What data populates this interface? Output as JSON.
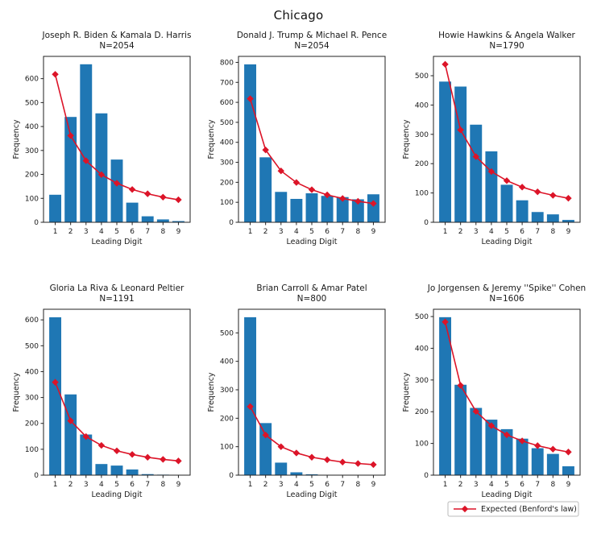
{
  "figure": {
    "title": "Chicago",
    "background": "#ffffff"
  },
  "style": {
    "bar_color": "#1f77b4",
    "line_color": "#dc1428",
    "axis_color": "#222222",
    "text_color": "#1a1a1a",
    "legend_border": "#bbbbbb"
  },
  "legend": {
    "label": "Expected (Benford's law)",
    "position": "below bottom-right subplot"
  },
  "shared": {
    "xlabel": "Leading Digit",
    "ylabel": "Frequency",
    "categories": [
      1,
      2,
      3,
      4,
      5,
      6,
      7,
      8,
      9
    ]
  },
  "chart_data": [
    {
      "id": "biden-harris",
      "type": "bar",
      "title": "Joseph R. Biden & Kamala D. Harris",
      "subtitle": "N=2054",
      "n": 2054,
      "xlabel": "Leading Digit",
      "ylabel": "Frequency",
      "categories": [
        1,
        2,
        3,
        4,
        5,
        6,
        7,
        8,
        9
      ],
      "series": [
        {
          "name": "Observed frequency",
          "type": "bar",
          "values": [
            115,
            440,
            660,
            455,
            262,
            82,
            25,
            12,
            5
          ]
        },
        {
          "name": "Expected (Benford's law)",
          "type": "line",
          "values": [
            618,
            362,
            257,
            199,
            163,
            137,
            119,
            105,
            94
          ]
        }
      ],
      "ylim": [
        0,
        693
      ],
      "yticks": [
        0,
        100,
        200,
        300,
        400,
        500,
        600
      ],
      "legend": false
    },
    {
      "id": "trump-pence",
      "type": "bar",
      "title": "Donald J. Trump & Michael R. Pence",
      "subtitle": "N=2054",
      "n": 2054,
      "xlabel": "Leading Digit",
      "ylabel": "Frequency",
      "categories": [
        1,
        2,
        3,
        4,
        5,
        6,
        7,
        8,
        9
      ],
      "series": [
        {
          "name": "Observed frequency",
          "type": "bar",
          "values": [
            790,
            325,
            152,
            117,
            145,
            132,
            126,
            115,
            140
          ]
        },
        {
          "name": "Expected (Benford's law)",
          "type": "line",
          "values": [
            618,
            362,
            257,
            199,
            163,
            137,
            119,
            105,
            94
          ]
        }
      ],
      "ylim": [
        0,
        830
      ],
      "yticks": [
        0,
        100,
        200,
        300,
        400,
        500,
        600,
        700,
        800
      ],
      "legend": false
    },
    {
      "id": "hawkins-walker",
      "type": "bar",
      "title": "Howie Hawkins & Angela Walker",
      "subtitle": "N=1790",
      "n": 1790,
      "xlabel": "Leading Digit",
      "ylabel": "Frequency",
      "categories": [
        1,
        2,
        3,
        4,
        5,
        6,
        7,
        8,
        9
      ],
      "series": [
        {
          "name": "Observed frequency",
          "type": "bar",
          "values": [
            480,
            463,
            333,
            242,
            128,
            75,
            35,
            27,
            8
          ]
        },
        {
          "name": "Expected (Benford's law)",
          "type": "line",
          "values": [
            539,
            315,
            224,
            173,
            142,
            120,
            104,
            92,
            82
          ]
        }
      ],
      "ylim": [
        0,
        566
      ],
      "yticks": [
        0,
        100,
        200,
        300,
        400,
        500
      ],
      "legend": false
    },
    {
      "id": "lariva-peltier",
      "type": "bar",
      "title": "Gloria La Riva & Leonard Peltier",
      "subtitle": "N=1191",
      "n": 1191,
      "xlabel": "Leading Digit",
      "ylabel": "Frequency",
      "categories": [
        1,
        2,
        3,
        4,
        5,
        6,
        7,
        8,
        9
      ],
      "series": [
        {
          "name": "Observed frequency",
          "type": "bar",
          "values": [
            610,
            312,
            157,
            43,
            37,
            22,
            4,
            2,
            1
          ]
        },
        {
          "name": "Expected (Benford's law)",
          "type": "line",
          "values": [
            359,
            210,
            149,
            115,
            94,
            80,
            69,
            61,
            55
          ]
        }
      ],
      "ylim": [
        0,
        641
      ],
      "yticks": [
        0,
        100,
        200,
        300,
        400,
        500,
        600
      ],
      "legend": false
    },
    {
      "id": "carroll-patel",
      "type": "bar",
      "title": "Brian Carroll & Amar Patel",
      "subtitle": "N=800",
      "n": 800,
      "xlabel": "Leading Digit",
      "ylabel": "Frequency",
      "categories": [
        1,
        2,
        3,
        4,
        5,
        6,
        7,
        8,
        9
      ],
      "series": [
        {
          "name": "Observed frequency",
          "type": "bar",
          "values": [
            555,
            183,
            44,
            10,
            3,
            1,
            1,
            1,
            1
          ]
        },
        {
          "name": "Expected (Benford's law)",
          "type": "line",
          "values": [
            241,
            141,
            100,
            78,
            63,
            54,
            46,
            41,
            37
          ]
        }
      ],
      "ylim": [
        0,
        583
      ],
      "yticks": [
        0,
        100,
        200,
        300,
        400,
        500
      ],
      "legend": false
    },
    {
      "id": "jorgensen-cohen",
      "type": "bar",
      "title": "Jo Jorgensen & Jeremy ''Spike'' Cohen",
      "subtitle": "N=1606",
      "n": 1606,
      "xlabel": "Leading Digit",
      "ylabel": "Frequency",
      "categories": [
        1,
        2,
        3,
        4,
        5,
        6,
        7,
        8,
        9
      ],
      "series": [
        {
          "name": "Observed frequency",
          "type": "bar",
          "values": [
            498,
            285,
            212,
            175,
            145,
            115,
            85,
            67,
            28
          ]
        },
        {
          "name": "Expected (Benford's law)",
          "type": "line",
          "values": [
            483,
            283,
            201,
            156,
            127,
            108,
            93,
            82,
            73
          ]
        }
      ],
      "ylim": [
        0,
        523
      ],
      "yticks": [
        0,
        100,
        200,
        300,
        400,
        500
      ],
      "legend": true
    }
  ]
}
